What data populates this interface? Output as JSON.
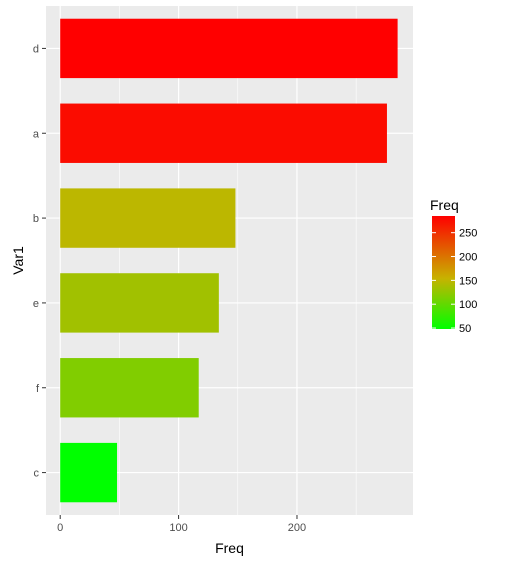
{
  "chart_data": {
    "type": "bar",
    "orientation": "horizontal",
    "xlabel": "Freq",
    "ylabel": "Var1",
    "xlim": [
      -12,
      298
    ],
    "x_ticks": [
      0,
      100,
      200
    ],
    "x_minor_ticks": [
      50,
      150,
      250
    ],
    "grid": true,
    "categories": [
      "d",
      "a",
      "b",
      "e",
      "f",
      "c"
    ],
    "values": [
      285,
      276,
      148,
      134,
      117,
      48
    ],
    "color_scale": {
      "low_color": "#00FF00",
      "high_color": "#FF0000",
      "mid_color": "#C8B200",
      "domain": [
        48,
        285
      ],
      "legend_title": "Freq",
      "legend_ticks": [
        50,
        100,
        150,
        200,
        250
      ],
      "legend_position": "right"
    },
    "panel_background": "#EBEBEB",
    "grid_color": "#FFFFFF"
  }
}
